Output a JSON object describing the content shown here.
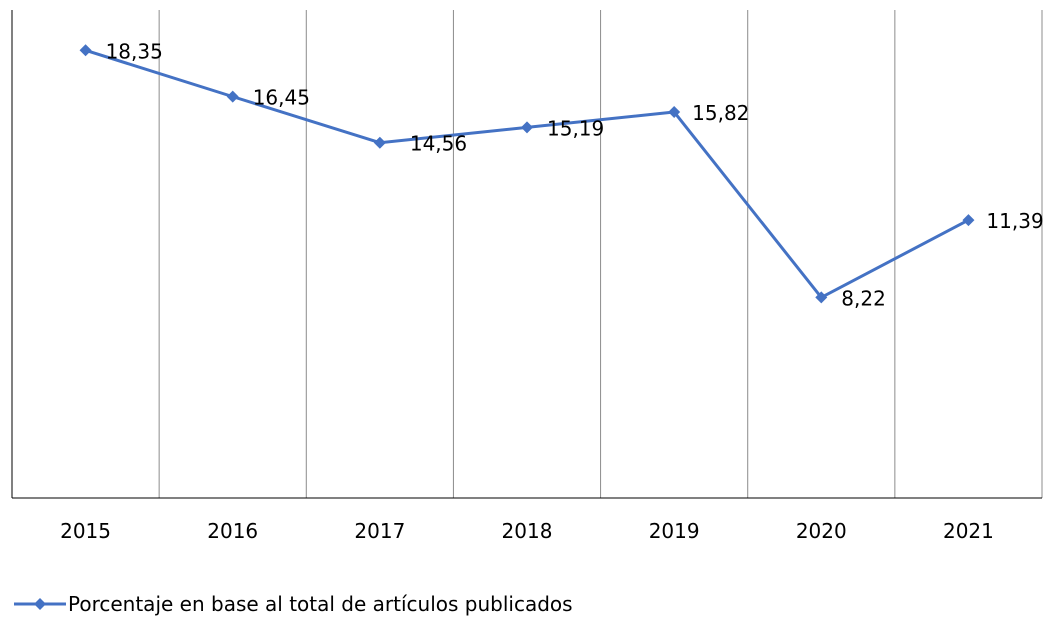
{
  "chart_data": {
    "type": "line",
    "title": "",
    "xlabel": "",
    "ylabel": "",
    "categories": [
      "2015",
      "2016",
      "2017",
      "2018",
      "2019",
      "2020",
      "2021"
    ],
    "series": [
      {
        "name": "Porcentaje en base al total de artículos publicados",
        "values": [
          18.35,
          16.45,
          14.56,
          15.19,
          15.82,
          8.22,
          11.39
        ],
        "labels": [
          "18,35",
          "16,45",
          "14,56",
          "15,19",
          "15,82",
          "8,22",
          "11,39"
        ],
        "color": "#4472c4",
        "marker": "diamond"
      }
    ],
    "ylim": [
      0,
      20
    ],
    "grid": "vertical",
    "legend": "bottom-left"
  }
}
